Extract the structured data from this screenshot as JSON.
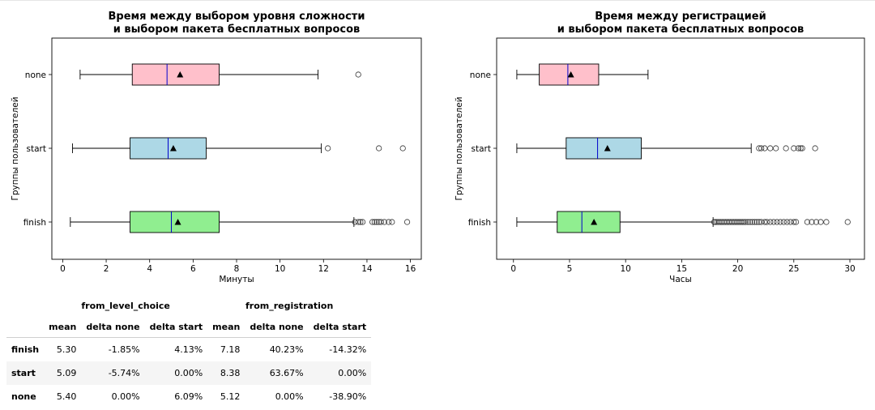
{
  "chart_data": [
    {
      "type": "boxplot",
      "orientation": "horizontal",
      "title_lines": [
        "Время между выбором уровня сложности",
        "и выбором пакета бесплатных вопросов"
      ],
      "xlabel": "Минуты",
      "ylabel": "Группы пользователей",
      "xlim": [
        -0.5,
        16.5
      ],
      "xticks": [
        0,
        2,
        4,
        6,
        8,
        10,
        12,
        14,
        16
      ],
      "tick_labels": [
        "0",
        "2",
        "4",
        "6",
        "8",
        "10",
        "12",
        "14",
        "16"
      ],
      "categories": [
        "none",
        "start",
        "finish"
      ],
      "series": [
        {
          "name": "none",
          "color": "#ffc0cb",
          "whisker_low": 0.8,
          "q1": 3.2,
          "median": 4.8,
          "q3": 7.2,
          "whisker_high": 11.75,
          "mean": 5.4,
          "outliers": [
            13.6
          ]
        },
        {
          "name": "start",
          "color": "#add8e6",
          "whisker_low": 0.45,
          "q1": 3.1,
          "median": 4.85,
          "q3": 6.6,
          "whisker_high": 11.9,
          "mean": 5.09,
          "outliers": [
            12.2,
            14.55,
            15.65
          ]
        },
        {
          "name": "finish",
          "color": "#90ee90",
          "whisker_low": 0.35,
          "q1": 3.1,
          "median": 5.0,
          "q3": 7.2,
          "whisker_high": 13.4,
          "mean": 5.3,
          "outliers": [
            13.45,
            13.6,
            13.7,
            13.8,
            14.25,
            14.35,
            14.45,
            14.55,
            14.65,
            14.8,
            15.0,
            15.15,
            15.85
          ]
        }
      ]
    },
    {
      "type": "boxplot",
      "orientation": "horizontal",
      "title_lines": [
        "Время между регистрацией",
        "и выбором пакета бесплатных вопросов"
      ],
      "xlabel": "Часы",
      "ylabel": "Группы пользователей",
      "xlim": [
        -1.5,
        31.3
      ],
      "xticks": [
        0,
        5,
        10,
        15,
        20,
        25,
        30
      ],
      "tick_labels": [
        "0",
        "5",
        "10",
        "15",
        "20",
        "25",
        "30"
      ],
      "categories": [
        "none",
        "start",
        "finish"
      ],
      "series": [
        {
          "name": "none",
          "color": "#ffc0cb",
          "whisker_low": 0.3,
          "q1": 2.3,
          "median": 4.85,
          "q3": 7.6,
          "whisker_high": 12.0,
          "mean": 5.12,
          "outliers": []
        },
        {
          "name": "start",
          "color": "#add8e6",
          "whisker_low": 0.3,
          "q1": 4.7,
          "median": 7.5,
          "q3": 11.4,
          "whisker_high": 21.2,
          "mean": 8.38,
          "outliers": [
            21.9,
            22.1,
            22.4,
            22.9,
            23.4,
            24.3,
            25.0,
            25.4,
            25.6,
            25.75,
            26.9
          ]
        },
        {
          "name": "finish",
          "color": "#90ee90",
          "whisker_low": 0.3,
          "q1": 3.9,
          "median": 6.1,
          "q3": 9.5,
          "whisker_high": 17.8,
          "mean": 7.18,
          "outliers": [
            17.9,
            18.0,
            18.15,
            18.3,
            18.45,
            18.6,
            18.75,
            18.9,
            19.05,
            19.2,
            19.35,
            19.5,
            19.65,
            19.8,
            19.95,
            20.1,
            20.25,
            20.4,
            20.55,
            20.7,
            20.9,
            21.1,
            21.3,
            21.5,
            21.7,
            21.9,
            22.1,
            22.4,
            22.6,
            22.9,
            23.2,
            23.5,
            23.8,
            24.1,
            24.4,
            24.7,
            25.0,
            25.2,
            26.2,
            26.6,
            27.0,
            27.4,
            27.9,
            29.8
          ]
        }
      ]
    }
  ],
  "table": {
    "group_headers": [
      "from_level_choice",
      "from_registration"
    ],
    "columns": [
      "mean",
      "delta none",
      "delta start",
      "mean",
      "delta none",
      "delta start"
    ],
    "rows": [
      {
        "label": "finish",
        "values": [
          "5.30",
          "-1.85%",
          "4.13%",
          "7.18",
          "40.23%",
          "-14.32%"
        ]
      },
      {
        "label": "start",
        "values": [
          "5.09",
          "-5.74%",
          "0.00%",
          "8.38",
          "63.67%",
          "0.00%"
        ]
      },
      {
        "label": "none",
        "values": [
          "5.40",
          "0.00%",
          "6.09%",
          "5.12",
          "0.00%",
          "-38.90%"
        ]
      }
    ]
  }
}
